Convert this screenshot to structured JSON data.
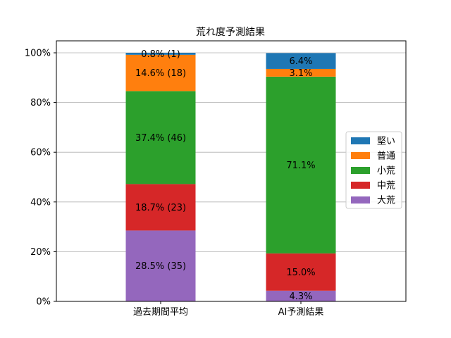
{
  "chart_data": {
    "type": "bar",
    "stacked": true,
    "title": "荒れ度予測結果",
    "categories": [
      "過去期間平均",
      "AI予測結果"
    ],
    "ylim": [
      0,
      100
    ],
    "yticks": [
      "0%",
      "20%",
      "40%",
      "60%",
      "80%",
      "100%"
    ],
    "ytick_values": [
      0,
      20,
      40,
      60,
      80,
      100
    ],
    "grid": "y",
    "legend_placement": "center-right",
    "series": [
      {
        "name": "大荒",
        "color": "#9467bd",
        "values": [
          28.5,
          4.3
        ],
        "labels": [
          "28.5% (35)",
          "4.3%"
        ]
      },
      {
        "name": "中荒",
        "color": "#d62728",
        "values": [
          18.7,
          15.0
        ],
        "labels": [
          "18.7% (23)",
          "15.0%"
        ]
      },
      {
        "name": "小荒",
        "color": "#2ca02c",
        "values": [
          37.4,
          71.1
        ],
        "labels": [
          "37.4% (46)",
          "71.1%"
        ]
      },
      {
        "name": "普通",
        "color": "#ff7f0e",
        "values": [
          14.6,
          3.1
        ],
        "labels": [
          "14.6% (18)",
          "3.1%"
        ]
      },
      {
        "name": "堅い",
        "color": "#1f77b4",
        "values": [
          0.8,
          6.4
        ],
        "labels": [
          "0.8% (1)",
          "6.4%"
        ]
      }
    ],
    "legend_order": [
      "堅い",
      "普通",
      "小荒",
      "中荒",
      "大荒"
    ]
  }
}
